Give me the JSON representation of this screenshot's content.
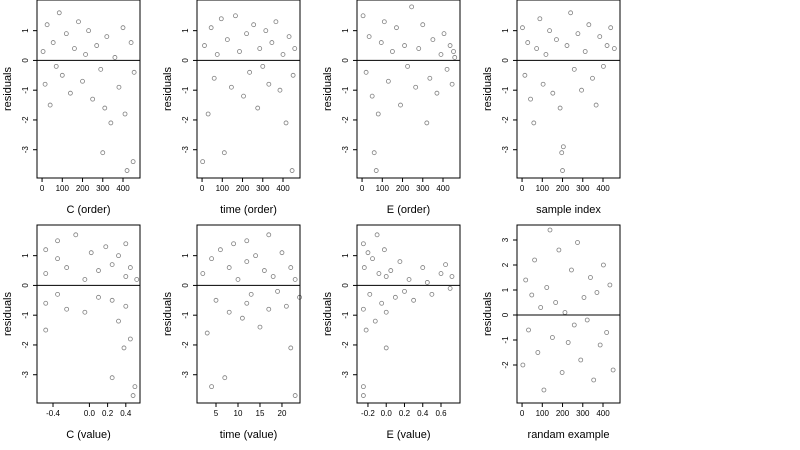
{
  "chart_data": [
    {
      "type": "scatter",
      "x_label": "C (order)",
      "y_label": "residuals",
      "color": "#000000",
      "hline": 0,
      "xlim": [
        -25,
        484
      ],
      "ylim": [
        -3.95,
        2.03
      ],
      "xticks": [
        0,
        100,
        200,
        300,
        400
      ],
      "yticks": [
        -3,
        -2,
        -1,
        0,
        1
      ],
      "x": [
        5,
        15,
        25,
        40,
        55,
        70,
        85,
        100,
        120,
        140,
        160,
        180,
        200,
        215,
        230,
        250,
        270,
        290,
        300,
        310,
        320,
        340,
        360,
        380,
        400,
        410,
        420,
        440,
        450,
        455
      ],
      "y": [
        0.3,
        -0.8,
        1.2,
        -1.5,
        0.6,
        -0.2,
        1.6,
        -0.5,
        0.9,
        -1.1,
        0.4,
        1.3,
        -0.7,
        0.2,
        1.0,
        -1.3,
        0.5,
        -0.3,
        -3.1,
        -1.6,
        0.8,
        -2.1,
        0.1,
        -0.9,
        1.1,
        -1.8,
        -3.7,
        0.6,
        -3.4,
        -0.4
      ]
    },
    {
      "type": "scatter",
      "x_label": "time (order)",
      "y_label": "residuals",
      "color": "#000000",
      "hline": 0,
      "xlim": [
        -25,
        484
      ],
      "ylim": [
        -3.95,
        2.03
      ],
      "xticks": [
        0,
        100,
        200,
        300,
        400
      ],
      "yticks": [
        -3,
        -2,
        -1,
        0,
        1
      ],
      "x": [
        3,
        12,
        30,
        45,
        60,
        75,
        95,
        110,
        125,
        145,
        165,
        185,
        205,
        220,
        235,
        255,
        275,
        285,
        300,
        315,
        330,
        345,
        365,
        385,
        400,
        415,
        430,
        445,
        450,
        458
      ],
      "y": [
        -3.4,
        0.5,
        -1.8,
        1.1,
        -0.6,
        0.2,
        1.4,
        -3.1,
        0.7,
        -0.9,
        1.5,
        0.3,
        -1.2,
        0.9,
        -0.4,
        1.2,
        -1.6,
        0.4,
        -0.2,
        1.0,
        -0.8,
        0.6,
        1.3,
        -1.0,
        0.2,
        -2.1,
        0.8,
        -3.7,
        -0.5,
        0.4
      ]
    },
    {
      "type": "scatter",
      "x_label": "E (order)",
      "y_label": "residuals",
      "color": "#000000",
      "hline": 0,
      "xlim": [
        -25,
        484
      ],
      "ylim": [
        -3.95,
        2.03
      ],
      "xticks": [
        0,
        100,
        200,
        300,
        400
      ],
      "yticks": [
        -3,
        -2,
        -1,
        0,
        1
      ],
      "x": [
        5,
        20,
        35,
        50,
        60,
        70,
        80,
        95,
        110,
        130,
        150,
        170,
        190,
        210,
        225,
        245,
        265,
        280,
        300,
        320,
        335,
        350,
        370,
        390,
        405,
        420,
        435,
        445,
        452,
        458
      ],
      "y": [
        1.5,
        -0.4,
        0.8,
        -1.2,
        -3.1,
        -3.7,
        -1.8,
        0.6,
        1.3,
        -0.7,
        0.3,
        1.1,
        -1.5,
        0.5,
        -0.2,
        1.8,
        -0.9,
        0.4,
        1.2,
        -2.1,
        -0.6,
        0.7,
        -1.1,
        0.2,
        0.9,
        -0.3,
        0.5,
        -0.8,
        0.3,
        0.1
      ]
    },
    {
      "type": "scatter",
      "x_label": "sample index",
      "y_label": "residuals",
      "color": "#000000",
      "hline": 0,
      "xlim": [
        -25,
        484
      ],
      "ylim": [
        -3.95,
        2.03
      ],
      "xticks": [
        0,
        100,
        200,
        300,
        400
      ],
      "yticks": [
        -3,
        -2,
        -1,
        0,
        1
      ],
      "x": [
        2,
        14,
        28,
        42,
        58,
        72,
        88,
        104,
        118,
        136,
        152,
        170,
        188,
        196,
        200,
        204,
        222,
        240,
        258,
        276,
        294,
        312,
        330,
        348,
        366,
        384,
        402,
        420,
        438,
        456
      ],
      "y": [
        1.1,
        -0.5,
        0.6,
        -1.3,
        -2.1,
        0.4,
        1.4,
        -0.8,
        0.2,
        1.0,
        -1.1,
        0.7,
        -1.6,
        -3.1,
        -3.7,
        -2.9,
        0.5,
        1.6,
        -0.3,
        0.9,
        -1.0,
        0.3,
        1.2,
        -0.6,
        -1.5,
        0.8,
        -0.2,
        0.5,
        1.1,
        0.4
      ]
    },
    {
      "type": "scatter",
      "x_label": "C (value)",
      "y_label": "residuals",
      "color": "#000000",
      "hline": 0,
      "xlim": [
        -0.576,
        0.556
      ],
      "ylim": [
        -3.95,
        2.03
      ],
      "xticks": [
        -0.4,
        {
          "value": 0,
          "label": "0.0"
        },
        0.2,
        0.4
      ],
      "yticks": [
        -3,
        -2,
        -1,
        0,
        1
      ],
      "x": [
        -0.48,
        -0.48,
        -0.48,
        -0.48,
        -0.35,
        -0.35,
        -0.35,
        -0.25,
        -0.25,
        -0.15,
        -0.05,
        -0.05,
        0.02,
        0.1,
        0.1,
        0.18,
        0.25,
        0.25,
        0.25,
        0.32,
        0.32,
        0.38,
        0.4,
        0.4,
        0.4,
        0.45,
        0.45,
        0.48,
        0.5,
        0.52
      ],
      "y": [
        -1.5,
        -0.6,
        0.4,
        1.2,
        0.9,
        -0.3,
        1.5,
        -0.8,
        0.6,
        1.7,
        0.2,
        -0.9,
        1.1,
        0.5,
        -0.4,
        1.3,
        -3.1,
        0.7,
        -0.5,
        1.0,
        -1.2,
        -2.1,
        0.3,
        -0.7,
        1.4,
        -1.8,
        0.6,
        -3.7,
        -3.4,
        0.2
      ]
    },
    {
      "type": "scatter",
      "x_label": "time (value)",
      "y_label": "residuals",
      "color": "#000000",
      "hline": 0,
      "xlim": [
        0.68,
        24.1
      ],
      "ylim": [
        -3.95,
        2.03
      ],
      "xticks": [
        5,
        10,
        15,
        20
      ],
      "yticks": [
        -3,
        -2,
        -1,
        0,
        1
      ],
      "x": [
        2,
        3,
        4,
        4,
        5,
        6,
        7,
        8,
        8,
        9,
        10,
        11,
        12,
        12,
        12,
        13,
        14,
        15,
        16,
        17,
        17,
        18,
        19,
        20,
        21,
        22,
        22,
        23,
        23,
        24
      ],
      "y": [
        0.4,
        -1.6,
        -3.4,
        0.9,
        -0.5,
        1.2,
        -3.1,
        0.6,
        -0.9,
        1.4,
        0.2,
        -1.1,
        0.8,
        -0.6,
        1.5,
        -0.3,
        1.0,
        -1.4,
        0.5,
        1.7,
        -0.8,
        0.3,
        -0.2,
        1.1,
        -0.7,
        0.6,
        -2.1,
        0.2,
        -3.7,
        -0.4
      ]
    },
    {
      "type": "scatter",
      "x_label": "E (value)",
      "y_label": "residuals",
      "color": "#000000",
      "hline": 0,
      "xlim": [
        -0.32,
        0.808
      ],
      "ylim": [
        -3.95,
        2.03
      ],
      "xticks": [
        -0.2,
        {
          "value": 0,
          "label": "0.0"
        },
        0.2,
        0.4,
        0.6
      ],
      "yticks": [
        -3,
        -2,
        -1,
        0,
        1
      ],
      "x": [
        -0.25,
        -0.25,
        -0.25,
        -0.25,
        -0.24,
        -0.22,
        -0.2,
        -0.18,
        -0.15,
        -0.12,
        -0.1,
        -0.08,
        -0.05,
        -0.02,
        0.0,
        0.0,
        0.0,
        0.05,
        0.1,
        0.15,
        0.2,
        0.25,
        0.3,
        0.4,
        0.45,
        0.5,
        0.6,
        0.65,
        0.7,
        0.72
      ],
      "y": [
        -3.4,
        -3.7,
        1.4,
        -0.8,
        0.6,
        -1.5,
        1.1,
        -0.3,
        0.9,
        -1.2,
        1.7,
        0.4,
        -0.6,
        1.2,
        -2.1,
        0.3,
        -0.9,
        0.5,
        -0.4,
        0.8,
        -0.2,
        0.2,
        -0.5,
        0.6,
        0.1,
        -0.3,
        0.4,
        0.7,
        -0.1,
        0.3
      ]
    },
    {
      "type": "scatter",
      "x_label": "randam example",
      "y_label": "residuals",
      "color": "#000000",
      "hline": 0,
      "xlim": [
        -25,
        484
      ],
      "ylim": [
        -3.52,
        3.6
      ],
      "xticks": [
        0,
        100,
        200,
        300,
        400
      ],
      "yticks": [
        -2,
        -1,
        0,
        1,
        2,
        3
      ],
      "x": [
        4,
        18,
        32,
        48,
        62,
        78,
        92,
        108,
        122,
        138,
        150,
        166,
        182,
        198,
        212,
        228,
        244,
        258,
        274,
        290,
        306,
        322,
        338,
        354,
        370,
        386,
        402,
        418,
        434,
        450
      ],
      "y": [
        -2.0,
        1.4,
        -0.6,
        0.8,
        2.2,
        -1.5,
        0.3,
        -3.0,
        1.1,
        3.4,
        -0.9,
        0.5,
        2.6,
        -2.3,
        0.1,
        -1.1,
        1.8,
        -0.4,
        2.9,
        -1.8,
        0.7,
        -0.2,
        1.5,
        -2.6,
        0.9,
        -1.2,
        2.0,
        -0.7,
        1.2,
        -2.2
      ]
    }
  ]
}
